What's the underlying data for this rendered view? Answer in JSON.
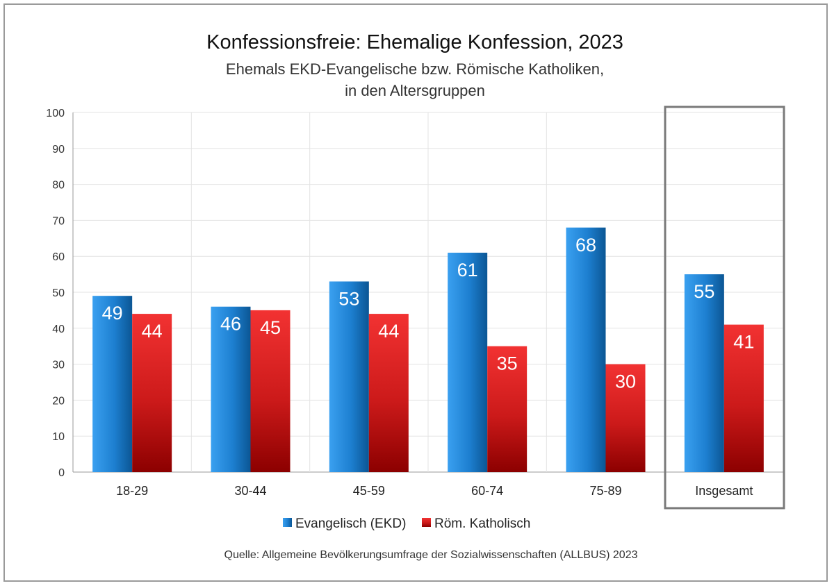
{
  "chart_data": {
    "type": "bar",
    "title": "Konfessionsfreie: Ehemalige Konfession, 2023",
    "subtitle_lines": [
      "Ehemals EKD-Evangelische bzw. Römische Katholiken,",
      "in den Altersgruppen"
    ],
    "categories": [
      "18-29",
      "30-44",
      "45-59",
      "60-74",
      "75-89",
      "Insgesamt"
    ],
    "series": [
      {
        "name": "Evangelisch (EKD)",
        "values": [
          49,
          46,
          53,
          61,
          68,
          55
        ],
        "color": "#1f78c8"
      },
      {
        "name": "Röm. Katholisch",
        "values": [
          44,
          45,
          44,
          35,
          30,
          41
        ],
        "color": "#d42020"
      }
    ],
    "y_ticks": [
      "0",
      "10",
      "20",
      "30",
      "40",
      "50",
      "60",
      "70",
      "80",
      "90",
      "100"
    ],
    "ylim": [
      0,
      100
    ],
    "grid": true,
    "legend_position": "bottom",
    "highlighted_category": "Insgesamt",
    "source": "Quelle: Allgemeine Bevölkerungsumfrage der Sozialwissenschaften (ALLBUS) 2023"
  }
}
